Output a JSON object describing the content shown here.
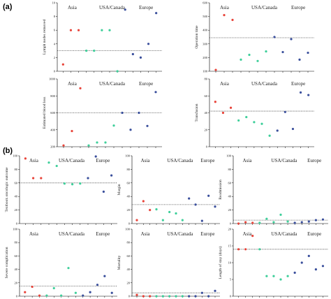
{
  "section_labels": [
    "(a)",
    "(b)"
  ],
  "groups": [
    "Asia",
    "USA/Canada",
    "Europe"
  ],
  "colors": {
    "Asia": "#e8443a",
    "USA/Canada": "#3ecf9a",
    "Europe": "#3a4f9c",
    "reference": "#333333"
  },
  "chart_data": [
    {
      "type": "scatter",
      "ylabel": "Lymph nodes removed",
      "ylim": [
        0,
        10
      ],
      "yticks": [
        0,
        2,
        4,
        6,
        8,
        10
      ],
      "reference": 3,
      "groups": [
        "Asia",
        "Asia",
        "Asia",
        "USA/Canada",
        "USA/Canada",
        "USA/Canada",
        "USA/Canada",
        "USA/Canada",
        "Europe",
        "Europe",
        "Europe",
        "Europe",
        "Europe"
      ],
      "values": [
        1,
        6,
        6,
        3,
        3,
        6,
        6,
        0,
        9,
        2.5,
        2,
        4,
        8.5
      ]
    },
    {
      "type": "scatter",
      "ylabel": "Operation time",
      "ylim": [
        100,
        600
      ],
      "yticks": [
        100,
        200,
        300,
        400,
        500,
        600
      ],
      "reference": 345,
      "groups": [
        "Asia",
        "Asia",
        "Asia",
        "USA/Canada",
        "USA/Canada",
        "USA/Canada",
        "USA/Canada",
        "Europe",
        "Europe",
        "Europe",
        "Europe",
        "Europe"
      ],
      "values": [
        110,
        510,
        475,
        185,
        220,
        175,
        245,
        350,
        240,
        335,
        185,
        235
      ]
    },
    {
      "type": "scatter",
      "ylabel": "Estimated blood loss",
      "ylim": [
        200,
        1000
      ],
      "yticks": [
        200,
        400,
        600,
        800,
        1000
      ],
      "reference": 600,
      "groups": [
        "Asia",
        "Asia",
        "Asia",
        "USA/Canada",
        "USA/Canada",
        "USA/Canada",
        "USA/Canada",
        "Europe",
        "Europe",
        "Europe",
        "Europe",
        "Europe"
      ],
      "values": [
        215,
        385,
        890,
        215,
        250,
        250,
        450,
        600,
        400,
        600,
        445,
        845
      ]
    },
    {
      "type": "scatter",
      "ylabel": "Transfusion",
      "ylim": [
        0,
        80
      ],
      "yticks": [
        0,
        20,
        40,
        60,
        80
      ],
      "reference": 42,
      "groups": [
        "Asia",
        "Asia",
        "Asia",
        "USA/Canada",
        "USA/Canada",
        "USA/Canada",
        "USA/Canada",
        "USA/Canada",
        "Europe",
        "Europe",
        "Europe",
        "Europe",
        "Europe"
      ],
      "values": [
        53,
        40,
        46,
        31,
        35,
        29,
        27,
        13,
        19,
        41,
        21,
        64,
        61
      ]
    },
    {
      "type": "scatter",
      "ylabel": "Textbook oncologic outcome",
      "ylim": [
        0,
        100
      ],
      "yticks": [
        0,
        20,
        40,
        60,
        80,
        100
      ],
      "reference": 60,
      "groups": [
        "Asia",
        "Asia",
        "Asia",
        "USA/Canada",
        "USA/Canada",
        "USA/Canada",
        "USA/Canada",
        "USA/Canada",
        "Europe",
        "Europe",
        "Europe",
        "Europe"
      ],
      "values": [
        96,
        67,
        67,
        90,
        85,
        59,
        58,
        59,
        67,
        99,
        47,
        71
      ]
    },
    {
      "type": "scatter",
      "ylabel": "Margin",
      "ylim": [
        0,
        100
      ],
      "yticks": [
        0,
        20,
        40,
        60,
        80,
        100
      ],
      "reference": 28,
      "groups": [
        "Asia",
        "Asia",
        "Asia",
        "USA/Canada",
        "USA/Canada",
        "USA/Canada",
        "USA/Canada",
        "USA/Canada",
        "Europe",
        "Europe",
        "Europe",
        "Europe",
        "Europe"
      ],
      "values": [
        5,
        33,
        20,
        21,
        5,
        17,
        15,
        5,
        37,
        28,
        4,
        41,
        25
      ]
    },
    {
      "type": "scatter",
      "ylabel": "Readmission",
      "ylim": [
        0,
        100
      ],
      "yticks": [
        0,
        20,
        40,
        60,
        80,
        100
      ],
      "reference": 5,
      "groups": [
        "Asia",
        "Asia",
        "Asia",
        "USA/Canada",
        "USA/Canada",
        "USA/Canada",
        "USA/Canada",
        "USA/Canada",
        "Europe",
        "Europe",
        "Europe",
        "Europe",
        "Europe"
      ],
      "values": [
        0,
        2,
        1,
        1,
        7,
        2,
        13,
        3,
        1,
        2,
        3,
        5,
        6
      ]
    },
    {
      "type": "scatter",
      "ylabel": "Severe complication",
      "ylim": [
        0,
        100
      ],
      "yticks": [
        0,
        20,
        40,
        60,
        80,
        100
      ],
      "reference": 15,
      "groups": [
        "Asia",
        "Asia",
        "Asia",
        "USA/Canada",
        "USA/Canada",
        "USA/Canada",
        "USA/Canada",
        "USA/Canada",
        "Europe",
        "Europe",
        "Europe",
        "Europe",
        "Europe"
      ],
      "values": [
        6,
        14,
        1,
        1,
        12,
        1,
        42,
        5,
        1,
        6,
        17,
        30,
        5
      ]
    },
    {
      "type": "scatter",
      "ylabel": "Mortality",
      "ylim": [
        0,
        100
      ],
      "yticks": [
        0,
        20,
        40,
        60,
        80,
        100
      ],
      "reference": 5,
      "groups": [
        "Asia",
        "Asia",
        "Asia",
        "USA/Canada",
        "USA/Canada",
        "USA/Canada",
        "USA/Canada",
        "USA/Canada",
        "Europe",
        "Europe",
        "Europe",
        "Europe",
        "Europe"
      ],
      "values": [
        2,
        0,
        0,
        0,
        0,
        0,
        0,
        0,
        0,
        0,
        5,
        0,
        8
      ]
    },
    {
      "type": "scatter",
      "ylabel": "Length of stay (days)",
      "ylim": [
        0,
        20
      ],
      "yticks": [
        0,
        5,
        10,
        15,
        20
      ],
      "reference": 14,
      "groups": [
        "Asia",
        "Asia",
        "Asia",
        "USA/Canada",
        "USA/Canada",
        "USA/Canada",
        "USA/Canada",
        "USA/Canada",
        "Europe",
        "Europe",
        "Europe",
        "Europe",
        "Europe"
      ],
      "values": [
        14,
        14,
        18,
        14,
        6,
        6,
        5,
        6,
        7,
        10,
        12,
        8,
        9
      ]
    }
  ]
}
